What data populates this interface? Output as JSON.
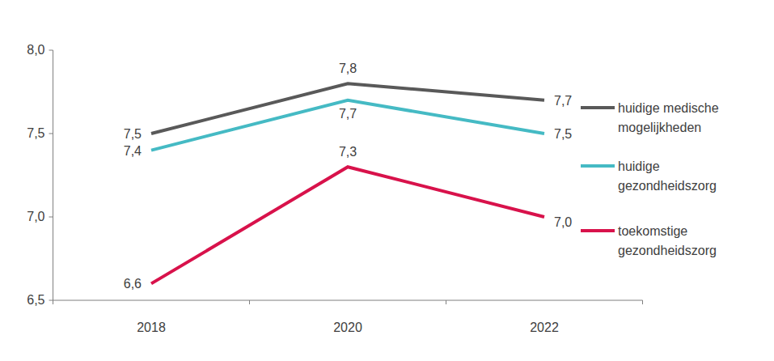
{
  "chart_data": {
    "type": "line",
    "categories": [
      "2018",
      "2020",
      "2022"
    ],
    "series": [
      {
        "name": "huidige medische mogelijkheden",
        "color": "#595959",
        "values": [
          7.5,
          7.8,
          7.7
        ],
        "value_labels": [
          "7,5",
          "7,8",
          "7,7"
        ]
      },
      {
        "name": "huidige gezondheidszorg",
        "color": "#45bac4",
        "values": [
          7.4,
          7.7,
          7.5
        ],
        "value_labels": [
          "7,4",
          "7,7",
          "7,5"
        ]
      },
      {
        "name": "toekomstige gezondheidszorg",
        "color": "#d8124b",
        "values": [
          6.6,
          7.3,
          7.0
        ],
        "value_labels": [
          "6,6",
          "7,3",
          "7,0"
        ]
      }
    ],
    "ylim": [
      6.5,
      8.0
    ],
    "yticks": [
      {
        "value": 6.5,
        "label": "6,5"
      },
      {
        "value": 7.0,
        "label": "7,0"
      },
      {
        "value": 7.5,
        "label": "7,5"
      },
      {
        "value": 8.0,
        "label": "8,0"
      }
    ],
    "grid": false,
    "legend": "right",
    "data_labels": true
  }
}
